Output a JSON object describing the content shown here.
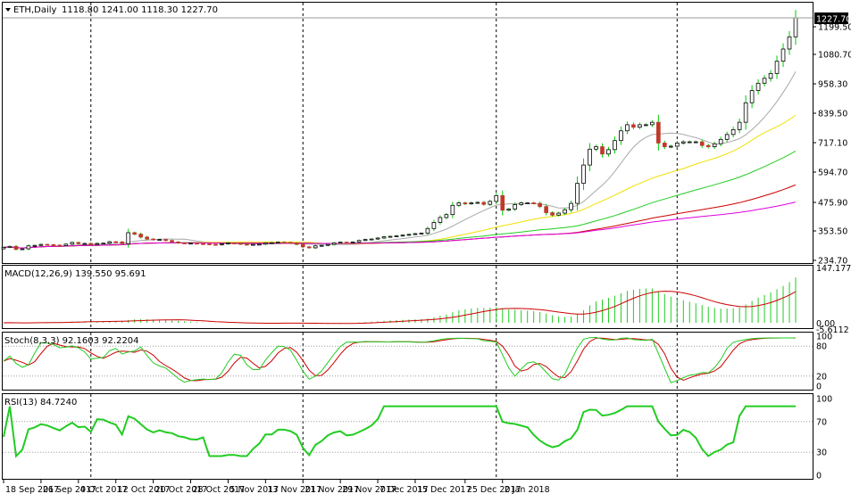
{
  "colors": {
    "bull_candle": "#00cc00",
    "bear_candle": "#c0392b",
    "candle_outline": "#000000",
    "frame": "#000000",
    "grid_dash": "#000000",
    "level_dots": "#9a9a9a",
    "ma_gray": "#a8a8a8",
    "ma_yellow": "#f0e000",
    "ma_green": "#22cc22",
    "ma_red": "#cc0000",
    "ma_magenta": "#e000e0",
    "macd_hist": "#22cc22",
    "macd_signal": "#cc0000",
    "stoch_main": "#22cc22",
    "stoch_signal": "#cc0000",
    "rsi_line": "#22cc22",
    "price_tag_bg": "#000000",
    "price_tag_text": "#ffffff"
  },
  "chart_data": [
    {
      "type": "candlestick",
      "title": "ETH,Daily",
      "ohlc_label": "1118.80 1241.00 1118.30 1227.70",
      "last_price": "1227.70",
      "y_ticks": [
        "1199.50",
        "1080.70",
        "958.30",
        "839.50",
        "717.10",
        "594.70",
        "475.90",
        "353.50",
        "234.70"
      ],
      "ylim": [
        234.7,
        1227.7
      ],
      "x_tick_labels": [
        "18 Sep 2017",
        "26 Sep 2017",
        "4 Oct 2017",
        "12 Oct 2017",
        "20 Oct 2017",
        "28 Oct 2017",
        "5 Nov 2017",
        "13 Nov 2017",
        "21 Nov 2017",
        "29 Nov 2017",
        "7 Dec 2017",
        "15 Dec 2017",
        "25 Dec 2017",
        "2 Jan 2018"
      ],
      "x_tick_positions": [
        0,
        6,
        12,
        18,
        24,
        30,
        36,
        42,
        48,
        54,
        60,
        66,
        74,
        80
      ],
      "close": [
        288,
        292,
        280,
        282,
        294,
        296,
        300,
        299,
        297,
        295,
        301,
        308,
        303,
        304,
        300,
        304,
        305,
        311,
        310,
        303,
        348,
        342,
        330,
        322,
        320,
        320,
        316,
        310,
        306,
        304,
        305,
        303,
        302,
        300,
        298,
        302,
        306,
        304,
        301,
        298,
        300,
        301,
        306,
        307,
        309,
        308,
        305,
        300,
        290,
        286,
        294,
        296,
        300,
        306,
        309,
        308,
        310,
        316,
        320,
        322,
        326,
        331,
        333,
        335,
        338,
        341,
        344,
        346,
        365,
        390,
        410,
        422,
        460,
        470,
        466,
        470,
        472,
        464,
        476,
        500,
        440,
        445,
        463,
        470,
        470,
        468,
        455,
        430,
        420,
        428,
        442,
        468,
        550,
        625,
        690,
        700,
        670,
        688,
        725,
        765,
        790,
        780,
        790,
        790,
        800,
        715,
        700,
        702,
        715,
        720,
        720,
        720,
        705,
        700,
        712,
        730,
        750,
        770,
        800,
        880,
        930,
        960,
        980,
        1000,
        1050,
        1100,
        1150,
        1227.7
      ],
      "series": [
        {
          "name": "",
          "color_key": "ma_gray"
        },
        {
          "name": "",
          "color_key": "ma_yellow"
        },
        {
          "name": "",
          "color_key": "ma_green"
        },
        {
          "name": "",
          "color_key": "ma_red"
        },
        {
          "name": "",
          "color_key": "ma_magenta"
        }
      ]
    },
    {
      "type": "bar_line",
      "title": "MACD(12,26,9) 139.550 95.691",
      "y_ticks": [
        "147.177",
        "0.00",
        "-5.6112"
      ],
      "ylim": [
        -10,
        150
      ]
    },
    {
      "type": "line",
      "title": "Stoch(8,3,3) 92.1603 92.2204",
      "y_ticks": [
        "100",
        "80",
        "20",
        "0"
      ],
      "levels": [
        80,
        20
      ],
      "ylim": [
        0,
        100
      ]
    },
    {
      "type": "line",
      "title": "RSI(13) 84.7240",
      "y_ticks": [
        "100",
        "70",
        "30",
        "0"
      ],
      "levels": [
        70,
        30
      ],
      "ylim": [
        0,
        100
      ]
    }
  ],
  "vertical_markers": [
    14,
    48,
    79,
    108
  ]
}
